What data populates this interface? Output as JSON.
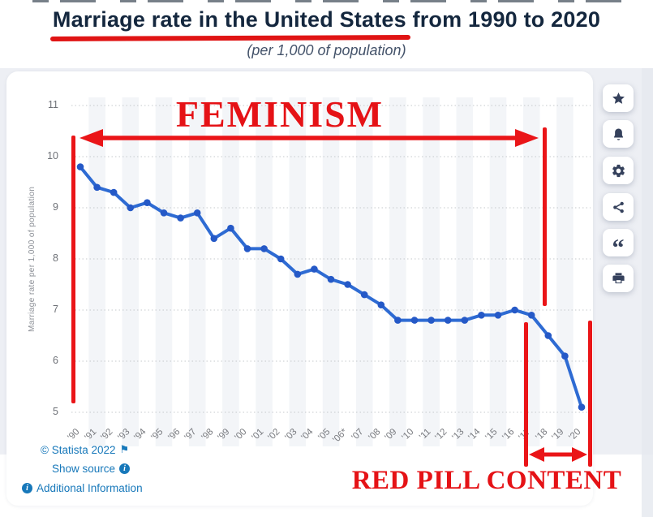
{
  "header": {
    "title": "Marriage rate in the United States from 1990 to 2020",
    "subtitle": "(per 1,000 of population)"
  },
  "chart_data": {
    "type": "line",
    "title": "Marriage rate in the United States from 1990 to 2020",
    "subtitle": "(per 1,000 of population)",
    "ylabel": "Marriage rate per 1,000 of population",
    "xlabel": "",
    "categories": [
      "'90",
      "'91",
      "'92",
      "'93",
      "'94",
      "'95",
      "'96",
      "'97",
      "'98",
      "'99",
      "'00",
      "'01",
      "'02",
      "'03",
      "'04",
      "'05",
      "'06*",
      "'07",
      "'08",
      "'09",
      "'10",
      "'11",
      "'12",
      "'13",
      "'14",
      "'15",
      "'16",
      "'17",
      "'18",
      "'19",
      "'20"
    ],
    "values": [
      9.8,
      9.4,
      9.3,
      9.0,
      9.1,
      8.9,
      8.8,
      8.9,
      8.4,
      8.6,
      8.2,
      8.2,
      8.0,
      7.7,
      7.8,
      7.6,
      7.5,
      7.3,
      7.1,
      6.8,
      6.8,
      6.8,
      6.8,
      6.8,
      6.9,
      6.9,
      7.0,
      6.9,
      6.5,
      6.1,
      5.1
    ],
    "ylim": [
      5,
      11
    ],
    "yticks": [
      11,
      10,
      9,
      8,
      7,
      6,
      5
    ],
    "grid": "horizontal-dotted",
    "legend": "none",
    "line_color": "#2e6bd3",
    "marker_color": "#2559c7",
    "stripe_color": "#f3f5f8"
  },
  "annotations": {
    "feminism_label": "FEMINISM",
    "red_pill_label": "RED PILL CONTENT",
    "accent_color": "#ea1518"
  },
  "footer": {
    "copyright": "© Statista 2022",
    "show_source": "Show source",
    "additional_information": "Additional Information",
    "link_color": "#1778ba"
  },
  "toolbar": {
    "buttons": [
      {
        "icon": "star-icon"
      },
      {
        "icon": "bell-icon"
      },
      {
        "icon": "gear-icon"
      },
      {
        "icon": "share-icon"
      },
      {
        "icon": "quote-icon"
      },
      {
        "icon": "print-icon"
      }
    ]
  }
}
